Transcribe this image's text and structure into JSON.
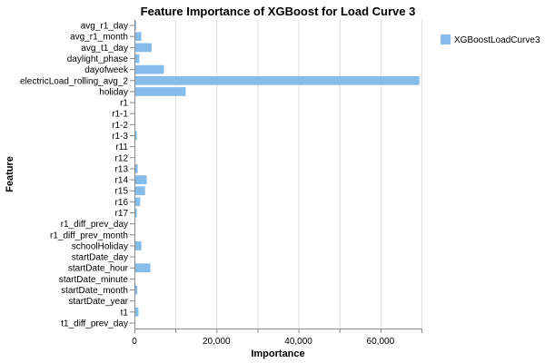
{
  "chart_data": {
    "type": "bar",
    "orientation": "horizontal",
    "title": "Feature Importance of XGBoost for Load Curve 3",
    "xlabel": "Importance",
    "ylabel": "Feature",
    "xlim": [
      0,
      70000
    ],
    "x_ticks": [
      0,
      20000,
      40000,
      60000
    ],
    "x_tick_labels": [
      "0",
      "20,000",
      "40,000",
      "60,000"
    ],
    "grid": true,
    "legend_position": "top-right",
    "categories": [
      "avg_r1_day",
      "avg_r1_month",
      "avg_t1_day",
      "daylight_phase",
      "dayofweek",
      "electricLoad_rolling_avg_2",
      "holiday",
      "r1",
      "r1-1",
      "r1-2",
      "r1-3",
      "r11",
      "r12",
      "r13",
      "r14",
      "r15",
      "r16",
      "r17",
      "r1_diff_prev_day",
      "r1_diff_prev_month",
      "schoolHoliday",
      "startDate_day",
      "startDate_hour",
      "startDate_minute",
      "startDate_month",
      "startDate_year",
      "t1",
      "t1_diff_prev_day"
    ],
    "series": [
      {
        "name": "XGBoostLoadCurve3",
        "color": "#86bcea",
        "values": [
          400,
          1700,
          4200,
          1200,
          7200,
          69500,
          12500,
          50,
          0,
          0,
          600,
          100,
          0,
          800,
          3000,
          2600,
          1400,
          600,
          100,
          100,
          1700,
          0,
          3900,
          0,
          700,
          0,
          1000,
          100
        ]
      }
    ]
  }
}
